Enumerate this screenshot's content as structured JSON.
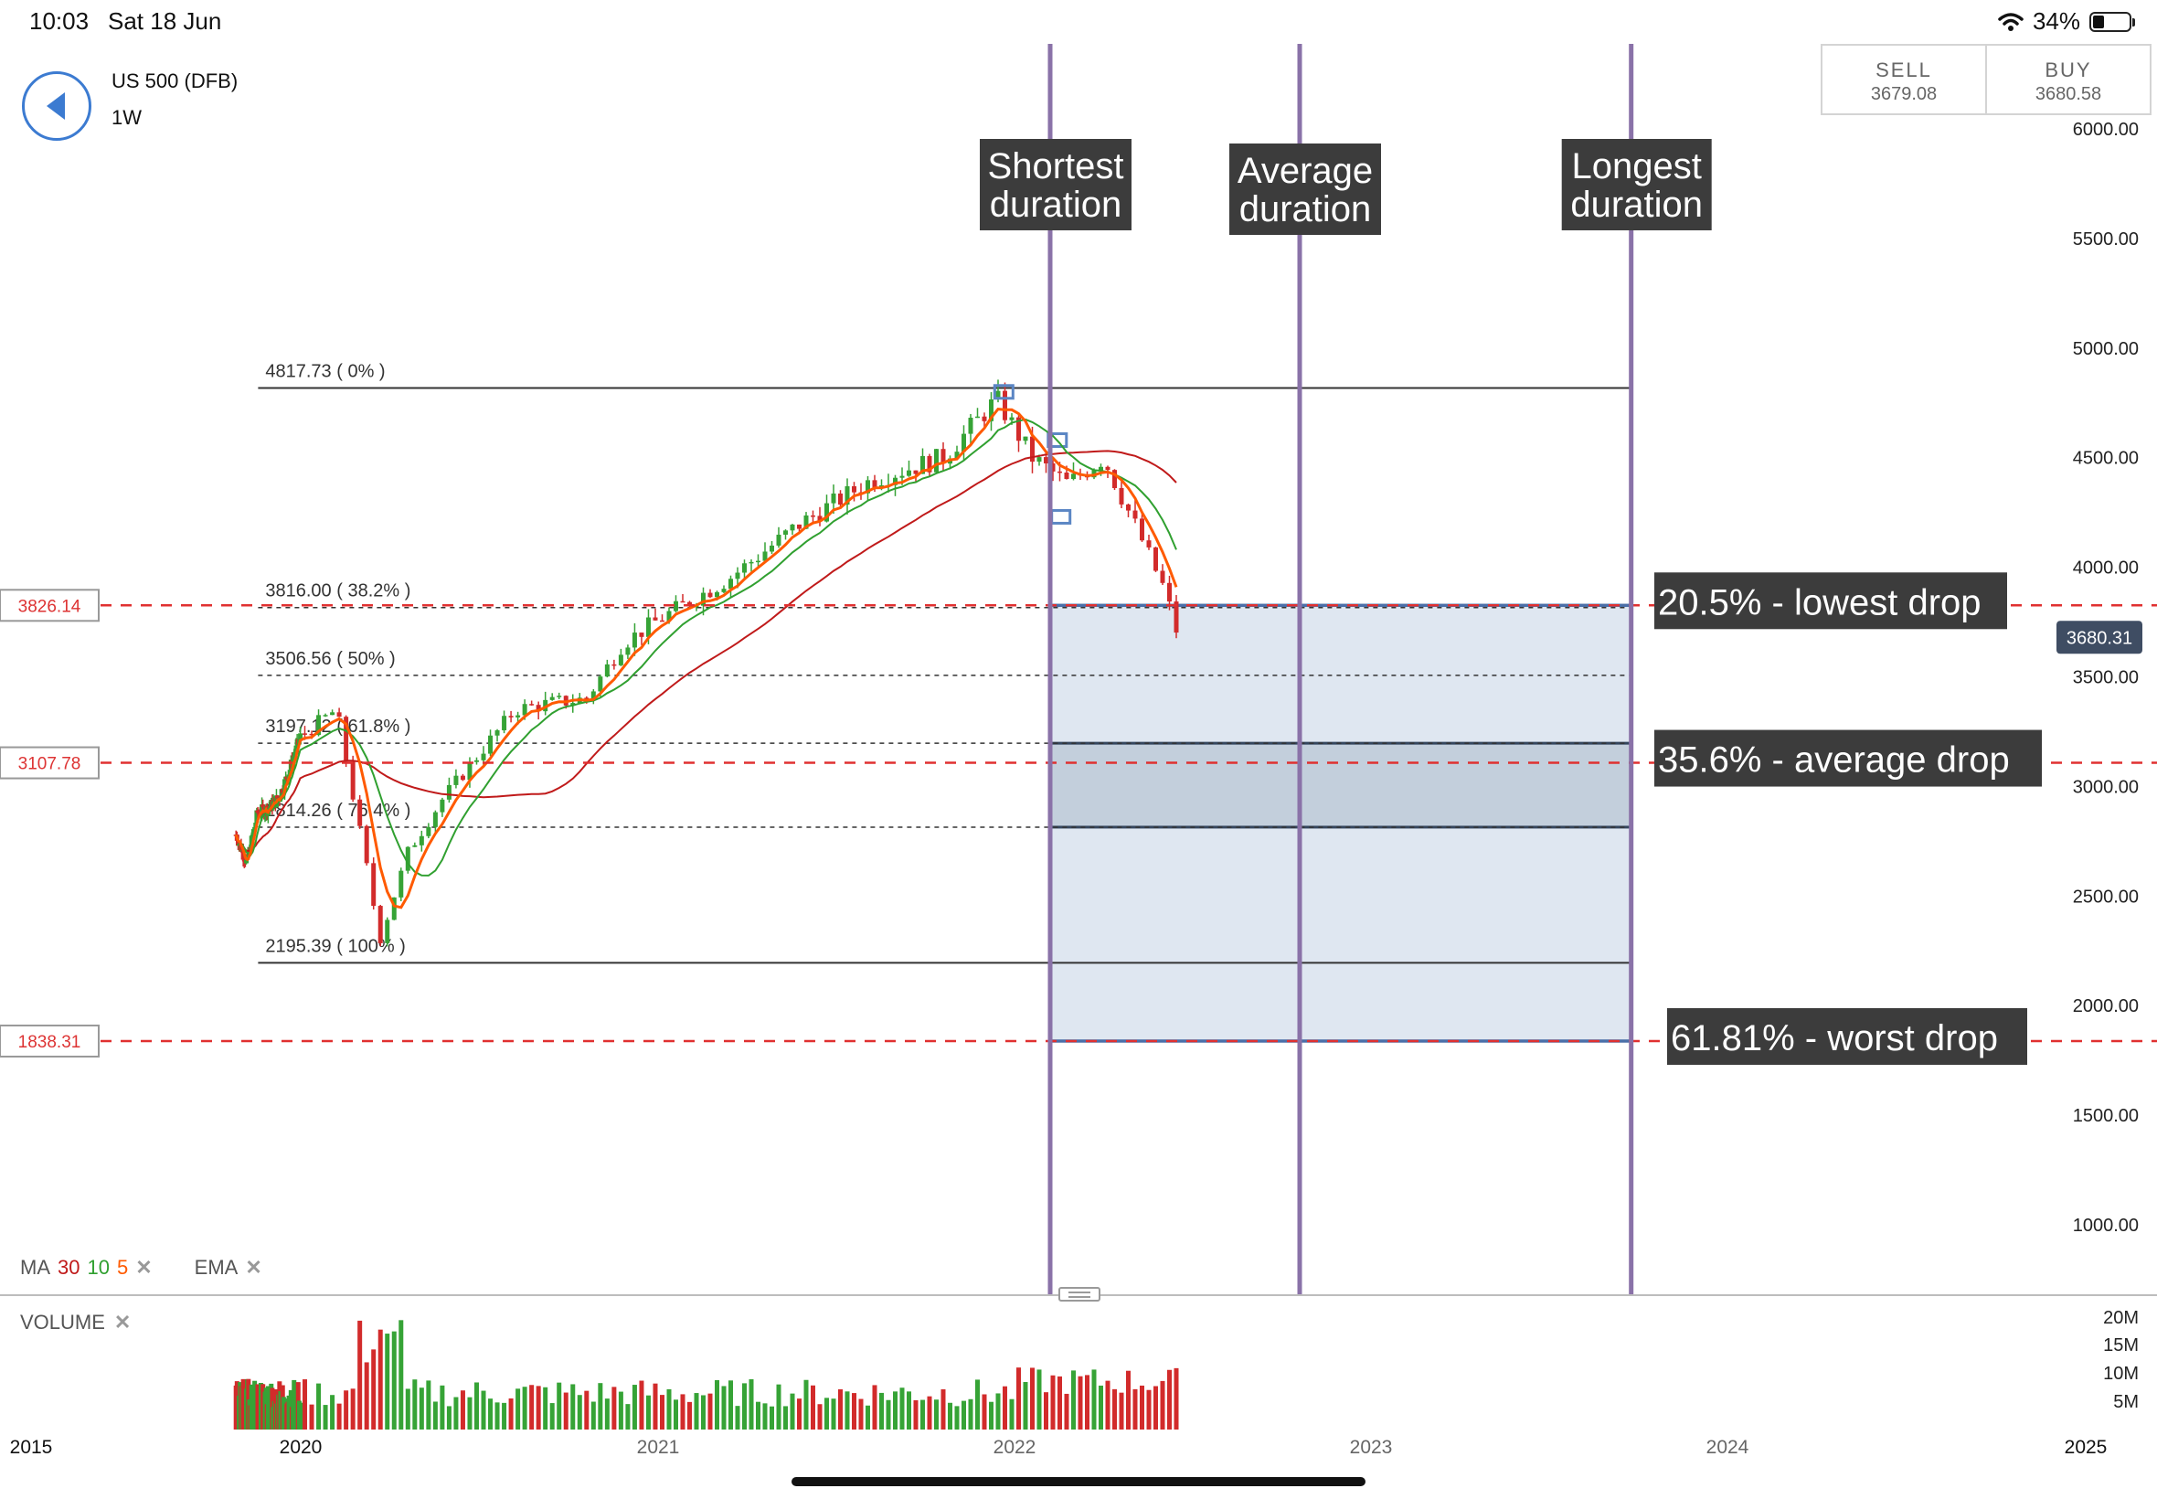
{
  "status_bar": {
    "time": "10:03",
    "date": "Sat 18 Jun",
    "battery": "34%"
  },
  "instrument": {
    "name": "US 500 (DFB)",
    "timeframe": "1W"
  },
  "trade": {
    "sell_label": "SELL",
    "sell_price": "3679.08",
    "buy_label": "BUY",
    "buy_price": "3680.58"
  },
  "indicators": {
    "ma_label": "MA",
    "ma_periods": [
      "30",
      "10",
      "5"
    ],
    "ema_label": "EMA",
    "close_glyph": "✕"
  },
  "volume_panel": {
    "label": "VOLUME",
    "axis_labels": [
      "20M",
      "15M",
      "10M",
      "5M"
    ]
  },
  "colors": {
    "up": "#36a336",
    "down": "#d22b2b",
    "ma30": "#c01a1a",
    "ma10": "#30a030",
    "ma5": "#ff5a00",
    "marker": "#8a72a8",
    "box_fill": "#dfe7f1",
    "box_stroke": "#4b6fa8",
    "label_bg": "#3c3c3c",
    "price_tag": "#3f4d63",
    "back": "#3c7bd1"
  },
  "chart_data": {
    "type": "candlestick",
    "instrument": "US 500 (DFB)",
    "interval": "1W",
    "y_axis": {
      "ticks": [
        "6000.00",
        "5500.00",
        "5000.00",
        "4500.00",
        "4000.00",
        "3500.00",
        "3000.00",
        "2500.00",
        "2000.00",
        "1500.00",
        "1000.00"
      ]
    },
    "x_axis": {
      "labels": [
        "2015",
        "2020",
        "2021",
        "2022",
        "2023",
        "2024",
        "2025"
      ]
    },
    "current_price": "3680.31",
    "price_points": [
      {
        "date": 2018.8,
        "price": 2780
      },
      {
        "date": 2019.0,
        "price": 2650
      },
      {
        "date": 2019.2,
        "price": 2880
      },
      {
        "date": 2019.4,
        "price": 2900
      },
      {
        "date": 2019.6,
        "price": 2950
      },
      {
        "date": 2019.8,
        "price": 3080
      },
      {
        "date": 2020.0,
        "price": 3230
      },
      {
        "date": 2020.1,
        "price": 3350
      },
      {
        "date": 2020.2,
        "price": 2500
      },
      {
        "date": 2020.22,
        "price": 2290
      },
      {
        "date": 2020.3,
        "price": 2700
      },
      {
        "date": 2020.4,
        "price": 2950
      },
      {
        "date": 2020.5,
        "price": 3150
      },
      {
        "date": 2020.6,
        "price": 3350
      },
      {
        "date": 2020.7,
        "price": 3380
      },
      {
        "date": 2020.8,
        "price": 3400
      },
      {
        "date": 2020.9,
        "price": 3650
      },
      {
        "date": 2021.0,
        "price": 3760
      },
      {
        "date": 2021.2,
        "price": 3950
      },
      {
        "date": 2021.4,
        "price": 4200
      },
      {
        "date": 2021.6,
        "price": 4400
      },
      {
        "date": 2021.8,
        "price": 4500
      },
      {
        "date": 2021.95,
        "price": 4766
      },
      {
        "date": 2022.05,
        "price": 4500
      },
      {
        "date": 2022.15,
        "price": 4380
      },
      {
        "date": 2022.25,
        "price": 4500
      },
      {
        "date": 2022.35,
        "price": 4150
      },
      {
        "date": 2022.42,
        "price": 3900
      },
      {
        "date": 2022.46,
        "price": 3680
      }
    ],
    "fibonacci": [
      {
        "label": "4817.73 ( 0% )",
        "price": 4817.73,
        "style": "solid"
      },
      {
        "label": "3816.00 ( 38.2% )",
        "price": 3816.0,
        "style": "dashed"
      },
      {
        "label": "3506.56 ( 50% )",
        "price": 3506.56,
        "style": "dashed"
      },
      {
        "label": "3197.12 ( 61.8% )",
        "price": 3197.12,
        "style": "dashed"
      },
      {
        "label": "2814.26 ( 76.4% )",
        "price": 2814.26,
        "style": "dashed"
      },
      {
        "label": "2195.39 ( 100% )",
        "price": 2195.39,
        "style": "solid"
      }
    ],
    "horizontal_levels": [
      {
        "tag": "3826.14",
        "price": 3826.14,
        "annotation": "20.5% - lowest drop"
      },
      {
        "tag": "3107.78",
        "price": 3107.78,
        "annotation": "35.6% - average drop"
      },
      {
        "tag": "1838.31",
        "price": 1838.31,
        "annotation": "61.81% - worst drop"
      }
    ],
    "vertical_markers": [
      {
        "label": [
          "Shortest",
          "duration"
        ],
        "date": 2022.1
      },
      {
        "label": [
          "Average",
          "duration"
        ],
        "date": 2022.8
      },
      {
        "label": [
          "Longest",
          "duration"
        ],
        "date": 2023.73
      }
    ],
    "zones": [
      {
        "from_date": 2022.1,
        "to_date": 2023.73,
        "from_price": 1838.31,
        "to_price": 3826.14,
        "style": "light"
      },
      {
        "from_date": 2022.1,
        "to_date": 2023.73,
        "from_price": 2814.26,
        "to_price": 3197.12,
        "style": "dark"
      }
    ],
    "moving_averages": [
      "MA 30",
      "MA 10",
      "MA 5"
    ],
    "volume": {
      "range_millions": [
        0,
        20
      ]
    }
  }
}
